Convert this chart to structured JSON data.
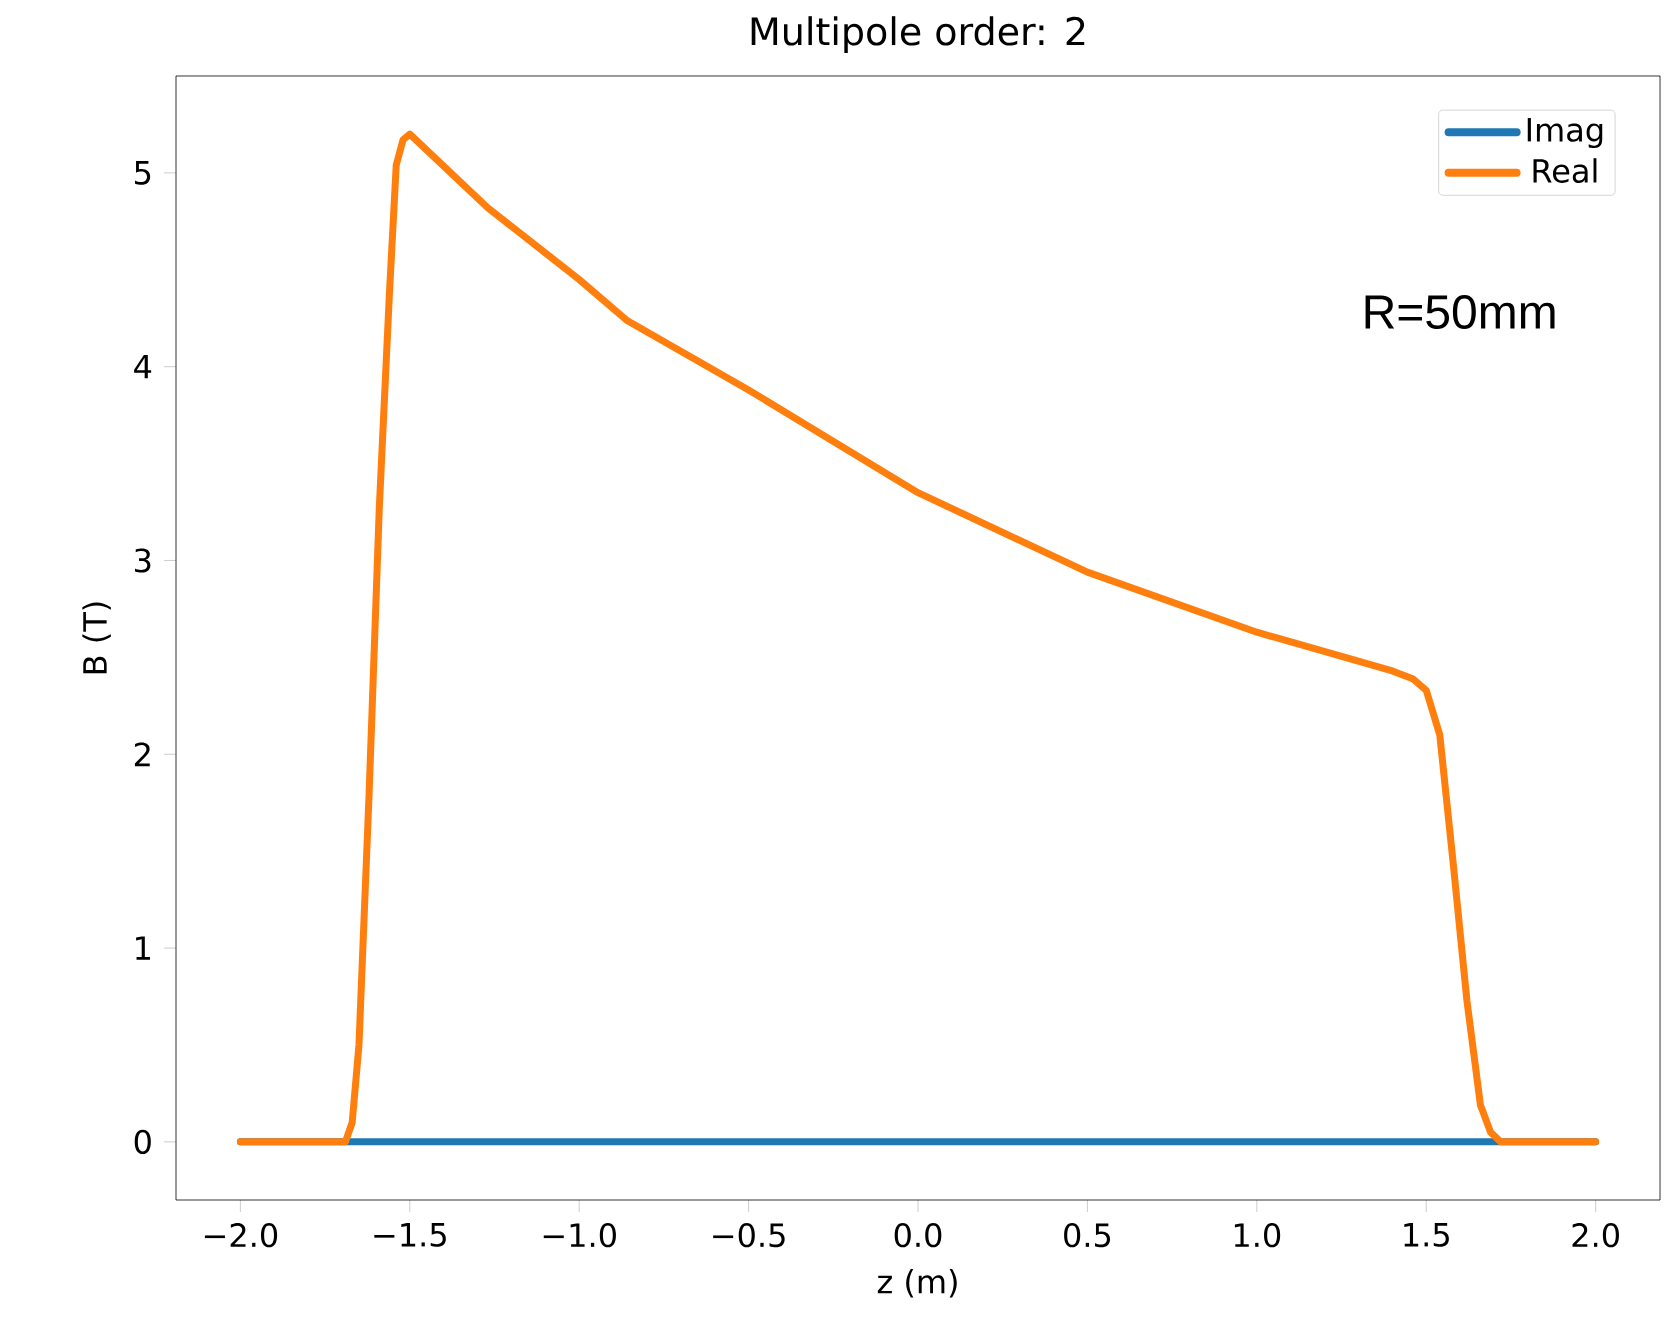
{
  "chart_data": {
    "type": "line",
    "title": "Multipole order: 2",
    "xlabel": "z (m)",
    "ylabel": "B (T)",
    "annotations": [
      "R=50mm"
    ],
    "xlim": [
      -2.19,
      2.19
    ],
    "ylim": [
      -0.3,
      5.5
    ],
    "xticks": [
      {
        "value": -2.0,
        "label": "−2.0"
      },
      {
        "value": -1.5,
        "label": "−1.5"
      },
      {
        "value": -1.0,
        "label": "−1.0"
      },
      {
        "value": -0.5,
        "label": "−0.5"
      },
      {
        "value": 0.0,
        "label": "0.0"
      },
      {
        "value": 0.5,
        "label": "0.5"
      },
      {
        "value": 1.0,
        "label": "1.0"
      },
      {
        "value": 1.5,
        "label": "1.5"
      },
      {
        "value": 2.0,
        "label": "2.0"
      }
    ],
    "yticks": [
      0,
      1,
      2,
      3,
      4,
      5
    ],
    "grid": false,
    "legend": "top right",
    "marker": "none",
    "line_style": "solid",
    "series": [
      {
        "name": "Imag",
        "color": "#1f77b4",
        "x": [
          -2.0,
          2.0
        ],
        "values": [
          0,
          0
        ]
      },
      {
        "name": "Real",
        "color": "#ff7f0e",
        "x": [
          -2.0,
          -1.69,
          -1.67,
          -1.65,
          -1.62,
          -1.59,
          -1.56,
          -1.54,
          -1.52,
          -1.5,
          -1.27,
          -1.0,
          -0.86,
          -0.5,
          0.0,
          0.5,
          1.0,
          1.4,
          1.46,
          1.5,
          1.54,
          1.58,
          1.62,
          1.66,
          1.69,
          1.72,
          2.0
        ],
        "values": [
          0,
          0,
          0.1,
          0.5,
          1.8,
          3.27,
          4.38,
          5.04,
          5.17,
          5.2,
          4.82,
          4.45,
          4.24,
          3.88,
          3.35,
          2.94,
          2.63,
          2.43,
          2.39,
          2.33,
          2.1,
          1.43,
          0.73,
          0.19,
          0.05,
          0,
          0
        ]
      }
    ]
  }
}
